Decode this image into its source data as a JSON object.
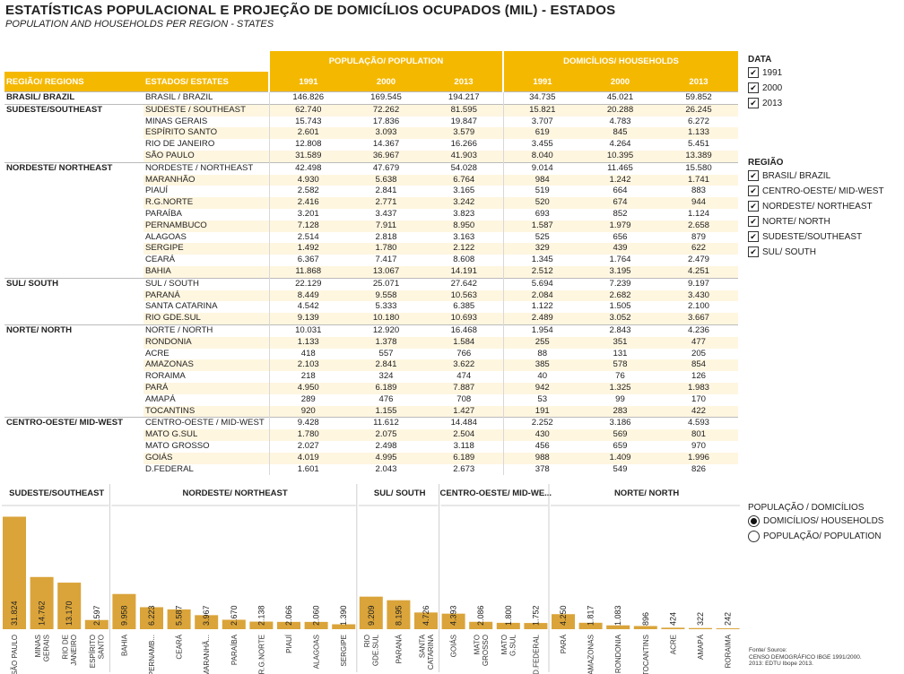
{
  "title": "ESTATÍSTICAS POPULACIONAL E PROJEÇÃO DE DOMICÍLIOS OCUPADOS (MIL) - ESTADOS",
  "subtitle": "POPULATION AND HOUSEHOLDS PER REGION - STATES",
  "table": {
    "col_region": "REGIÃO/ REGIONS",
    "col_state": "ESTADOS/ ESTATES",
    "group_pop": "POPULAÇÃO/ POPULATION",
    "group_dom": "DOMICÍLIOS/ HOUSEHOLDS",
    "years": [
      "1991",
      "2000",
      "2013"
    ],
    "groups": [
      {
        "region": "BRASIL/ BRAZIL",
        "rows": [
          {
            "state": "BRASIL / BRAZIL",
            "p": [
              "146.826",
              "169.545",
              "194.217"
            ],
            "d": [
              "34.735",
              "45.021",
              "59.852"
            ]
          }
        ]
      },
      {
        "region": "SUDESTE/SOUTHEAST",
        "rows": [
          {
            "state": "SUDESTE / SOUTHEAST",
            "p": [
              "62.740",
              "72.262",
              "81.595"
            ],
            "d": [
              "15.821",
              "20.288",
              "26.245"
            ]
          },
          {
            "state": "MINAS GERAIS",
            "p": [
              "15.743",
              "17.836",
              "19.847"
            ],
            "d": [
              "3.707",
              "4.783",
              "6.272"
            ]
          },
          {
            "state": "ESPÍRITO SANTO",
            "p": [
              "2.601",
              "3.093",
              "3.579"
            ],
            "d": [
              "619",
              "845",
              "1.133"
            ]
          },
          {
            "state": "RIO DE JANEIRO",
            "p": [
              "12.808",
              "14.367",
              "16.266"
            ],
            "d": [
              "3.455",
              "4.264",
              "5.451"
            ]
          },
          {
            "state": "SÃO PAULO",
            "p": [
              "31.589",
              "36.967",
              "41.903"
            ],
            "d": [
              "8.040",
              "10.395",
              "13.389"
            ]
          }
        ]
      },
      {
        "region": "NORDESTE/ NORTHEAST",
        "rows": [
          {
            "state": "NORDESTE / NORTHEAST",
            "p": [
              "42.498",
              "47.679",
              "54.028"
            ],
            "d": [
              "9.014",
              "11.465",
              "15.580"
            ]
          },
          {
            "state": "MARANHÃO",
            "p": [
              "4.930",
              "5.638",
              "6.764"
            ],
            "d": [
              "984",
              "1.242",
              "1.741"
            ]
          },
          {
            "state": "PIAUÍ",
            "p": [
              "2.582",
              "2.841",
              "3.165"
            ],
            "d": [
              "519",
              "664",
              "883"
            ]
          },
          {
            "state": "R.G.NORTE",
            "p": [
              "2.416",
              "2.771",
              "3.242"
            ],
            "d": [
              "520",
              "674",
              "944"
            ]
          },
          {
            "state": "PARAÍBA",
            "p": [
              "3.201",
              "3.437",
              "3.823"
            ],
            "d": [
              "693",
              "852",
              "1.124"
            ]
          },
          {
            "state": "PERNAMBUCO",
            "p": [
              "7.128",
              "7.911",
              "8.950"
            ],
            "d": [
              "1.587",
              "1.979",
              "2.658"
            ]
          },
          {
            "state": "ALAGOAS",
            "p": [
              "2.514",
              "2.818",
              "3.163"
            ],
            "d": [
              "525",
              "656",
              "879"
            ]
          },
          {
            "state": "SERGIPE",
            "p": [
              "1.492",
              "1.780",
              "2.122"
            ],
            "d": [
              "329",
              "439",
              "622"
            ]
          },
          {
            "state": "CEARÁ",
            "p": [
              "6.367",
              "7.417",
              "8.608"
            ],
            "d": [
              "1.345",
              "1.764",
              "2.479"
            ]
          },
          {
            "state": "BAHIA",
            "p": [
              "11.868",
              "13.067",
              "14.191"
            ],
            "d": [
              "2.512",
              "3.195",
              "4.251"
            ]
          }
        ]
      },
      {
        "region": "SUL/ SOUTH",
        "rows": [
          {
            "state": "SUL / SOUTH",
            "p": [
              "22.129",
              "25.071",
              "27.642"
            ],
            "d": [
              "5.694",
              "7.239",
              "9.197"
            ]
          },
          {
            "state": "PARANÁ",
            "p": [
              "8.449",
              "9.558",
              "10.563"
            ],
            "d": [
              "2.084",
              "2.682",
              "3.430"
            ]
          },
          {
            "state": "SANTA CATARINA",
            "p": [
              "4.542",
              "5.333",
              "6.385"
            ],
            "d": [
              "1.122",
              "1.505",
              "2.100"
            ]
          },
          {
            "state": "RIO GDE.SUL",
            "p": [
              "9.139",
              "10.180",
              "10.693"
            ],
            "d": [
              "2.489",
              "3.052",
              "3.667"
            ]
          }
        ]
      },
      {
        "region": "NORTE/ NORTH",
        "rows": [
          {
            "state": "NORTE / NORTH",
            "p": [
              "10.031",
              "12.920",
              "16.468"
            ],
            "d": [
              "1.954",
              "2.843",
              "4.236"
            ]
          },
          {
            "state": "RONDONIA",
            "p": [
              "1.133",
              "1.378",
              "1.584"
            ],
            "d": [
              "255",
              "351",
              "477"
            ]
          },
          {
            "state": "ACRE",
            "p": [
              "418",
              "557",
              "766"
            ],
            "d": [
              "88",
              "131",
              "205"
            ]
          },
          {
            "state": "AMAZONAS",
            "p": [
              "2.103",
              "2.841",
              "3.622"
            ],
            "d": [
              "385",
              "578",
              "854"
            ]
          },
          {
            "state": "RORAIMA",
            "p": [
              "218",
              "324",
              "474"
            ],
            "d": [
              "40",
              "76",
              "126"
            ]
          },
          {
            "state": "PARÁ",
            "p": [
              "4.950",
              "6.189",
              "7.887"
            ],
            "d": [
              "942",
              "1.325",
              "1.983"
            ]
          },
          {
            "state": "AMAPÁ",
            "p": [
              "289",
              "476",
              "708"
            ],
            "d": [
              "53",
              "99",
              "170"
            ]
          },
          {
            "state": "TOCANTINS",
            "p": [
              "920",
              "1.155",
              "1.427"
            ],
            "d": [
              "191",
              "283",
              "422"
            ]
          }
        ]
      },
      {
        "region": "CENTRO-OESTE/ MID-WEST",
        "rows": [
          {
            "state": "CENTRO-OESTE / MID-WEST",
            "p": [
              "9.428",
              "11.612",
              "14.484"
            ],
            "d": [
              "2.252",
              "3.186",
              "4.593"
            ]
          },
          {
            "state": "MATO G.SUL",
            "p": [
              "1.780",
              "2.075",
              "2.504"
            ],
            "d": [
              "430",
              "569",
              "801"
            ]
          },
          {
            "state": "MATO GROSSO",
            "p": [
              "2.027",
              "2.498",
              "3.118"
            ],
            "d": [
              "456",
              "659",
              "970"
            ]
          },
          {
            "state": "GOIÁS",
            "p": [
              "4.019",
              "4.995",
              "6.189"
            ],
            "d": [
              "988",
              "1.409",
              "1.996"
            ]
          },
          {
            "state": "D.FEDERAL",
            "p": [
              "1.601",
              "2.043",
              "2.673"
            ],
            "d": [
              "378",
              "549",
              "826"
            ]
          }
        ]
      }
    ]
  },
  "filters": {
    "data": {
      "title": "DATA",
      "items": [
        {
          "label": "1991",
          "checked": true
        },
        {
          "label": "2000",
          "checked": true
        },
        {
          "label": "2013",
          "checked": true
        }
      ]
    },
    "regiao": {
      "title": "REGIÃO",
      "items": [
        {
          "label": "BRASIL/ BRAZIL",
          "checked": true
        },
        {
          "label": "CENTRO-OESTE/ MID-WEST",
          "checked": true
        },
        {
          "label": "NORDESTE/ NORTHEAST",
          "checked": true
        },
        {
          "label": "NORTE/ NORTH",
          "checked": true
        },
        {
          "label": "SUDESTE/SOUTHEAST",
          "checked": true
        },
        {
          "label": "SUL/ SOUTH",
          "checked": true
        }
      ]
    },
    "measure": {
      "title": "POPULAÇÃO / DOMICÍLIOS",
      "items": [
        {
          "label": "DOMICÍLIOS/ HOUSEHOLDS",
          "selected": true
        },
        {
          "label": "POPULAÇÃO/ POPULATION",
          "selected": false
        }
      ]
    }
  },
  "source": [
    "Fonte/ Source:",
    "CENSO DEMOGRÁFICO IBGE 1991/2000.",
    "2013: EDTU  Ibope 2013."
  ],
  "colors": {
    "accent": "#f5b800",
    "bar": "#daa43a"
  },
  "chart_data": {
    "type": "bar",
    "measure": "DOMICÍLIOS/ HOUSEHOLDS",
    "ylim": [
      0,
      36000
    ],
    "panels": [
      {
        "region": "SUDESTE/SOUTHEAST",
        "bars": [
          {
            "label": "SÃO PAULO",
            "value": 31824,
            "text": "31.824"
          },
          {
            "label": "MINAS GERAIS",
            "value": 14762,
            "text": "14.762"
          },
          {
            "label": "RIO DE JANEIRO",
            "value": 13170,
            "text": "13.170"
          },
          {
            "label": "ESPÍRITO SANTO",
            "value": 2597,
            "text": "2.597"
          }
        ]
      },
      {
        "region": "NORDESTE/ NORTHEAST",
        "bars": [
          {
            "label": "BAHIA",
            "value": 9958,
            "text": "9.958"
          },
          {
            "label": "PERNAMB...",
            "value": 6223,
            "text": "6.223"
          },
          {
            "label": "CEARÁ",
            "value": 5587,
            "text": "5.587"
          },
          {
            "label": "MARANHÃ...",
            "value": 3967,
            "text": "3.967"
          },
          {
            "label": "PARAÍBA",
            "value": 2670,
            "text": "2.670"
          },
          {
            "label": "R.G.NORTE",
            "value": 2138,
            "text": "2.138"
          },
          {
            "label": "PIAUÍ",
            "value": 2066,
            "text": "2.066"
          },
          {
            "label": "ALAGOAS",
            "value": 2060,
            "text": "2.060"
          },
          {
            "label": "SERGIPE",
            "value": 1390,
            "text": "1.390"
          }
        ]
      },
      {
        "region": "SUL/ SOUTH",
        "bars": [
          {
            "label": "RIO GDE.SUL",
            "value": 9209,
            "text": "9.209"
          },
          {
            "label": "PARANÁ",
            "value": 8195,
            "text": "8.195"
          },
          {
            "label": "SANTA CATARINA",
            "value": 4726,
            "text": "4.726"
          }
        ]
      },
      {
        "region": "CENTRO-OESTE/ MID-WE...",
        "bars": [
          {
            "label": "GOIÁS",
            "value": 4393,
            "text": "4.393"
          },
          {
            "label": "MATO GROSSO",
            "value": 2086,
            "text": "2.086"
          },
          {
            "label": "MATO G.SUL",
            "value": 1800,
            "text": "1.800"
          },
          {
            "label": "D.FEDERAL",
            "value": 1752,
            "text": "1.752"
          }
        ]
      },
      {
        "region": "NORTE/ NORTH",
        "bars": [
          {
            "label": "PARÁ",
            "value": 4250,
            "text": "4.250"
          },
          {
            "label": "AMAZONAS",
            "value": 1817,
            "text": "1.817"
          },
          {
            "label": "RONDONIA",
            "value": 1083,
            "text": "1.083"
          },
          {
            "label": "TOCANTINS",
            "value": 896,
            "text": "896"
          },
          {
            "label": "ACRE",
            "value": 424,
            "text": "424"
          },
          {
            "label": "AMAPÁ",
            "value": 322,
            "text": "322"
          },
          {
            "label": "RORAIMA",
            "value": 242,
            "text": "242"
          }
        ]
      }
    ]
  }
}
